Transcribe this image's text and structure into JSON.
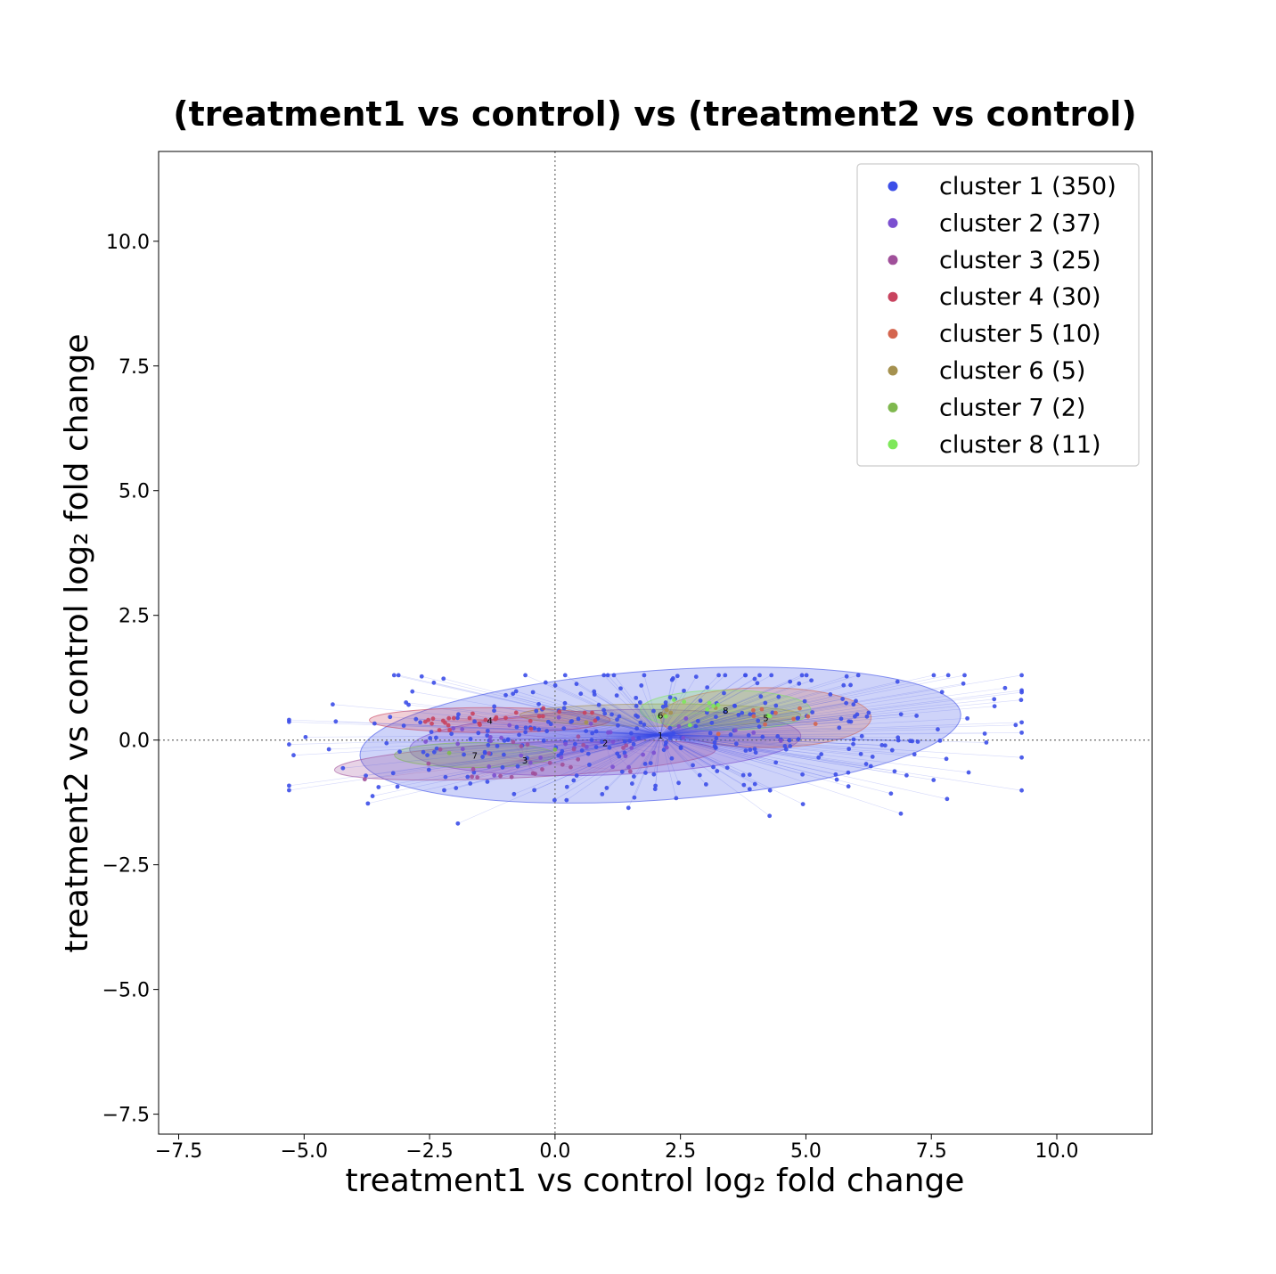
{
  "chart_data": {
    "type": "scatter",
    "title": "(treatment1 vs control) vs (treatment2 vs control)",
    "xlabel": "treatment1 vs control log₂ fold change",
    "ylabel": "treatment2 vs control log₂ fold change",
    "xlim": [
      -7.9,
      11.9
    ],
    "ylim": [
      -7.9,
      11.8
    ],
    "xticks": [
      -7.5,
      -5.0,
      -2.5,
      0.0,
      2.5,
      5.0,
      7.5,
      10.0
    ],
    "yticks": [
      -7.5,
      -5.0,
      -2.5,
      0.0,
      2.5,
      5.0,
      7.5,
      10.0
    ],
    "xtick_labels": [
      "−7.5",
      "−5.0",
      "−2.5",
      "0.0",
      "2.5",
      "5.0",
      "7.5",
      "10.0"
    ],
    "ytick_labels": [
      "−7.5",
      "−5.0",
      "−2.5",
      "0.0",
      "2.5",
      "5.0",
      "7.5",
      "10.0"
    ],
    "reference_lines": {
      "x": 0,
      "y": 0,
      "style": "dotted"
    },
    "legend_position": "top-right",
    "series": [
      {
        "name": "cluster 1 (350)",
        "label": "1",
        "color": "#3c4ee8",
        "count": 350,
        "centroid": [
          2.1,
          0.1
        ],
        "ellipse": {
          "width": 12.0,
          "height": 2.6,
          "angle_deg": 4
        },
        "x_range": [
          -5.3,
          9.3
        ],
        "y_range": [
          -2.2,
          1.3
        ]
      },
      {
        "name": "cluster 2 (37)",
        "label": "2",
        "color": "#7b4fd0",
        "count": 37,
        "centroid": [
          1.0,
          -0.05
        ],
        "ellipse": {
          "width": 7.8,
          "height": 1.3,
          "angle_deg": 2
        },
        "x_range": [
          -2.8,
          4.5
        ],
        "y_range": [
          -0.8,
          0.7
        ]
      },
      {
        "name": "cluster 3 (25)",
        "label": "3",
        "color": "#a0509a",
        "count": 25,
        "centroid": [
          -0.6,
          -0.4
        ],
        "ellipse": {
          "width": 7.6,
          "height": 0.7,
          "angle_deg": 3
        },
        "x_range": [
          -4.0,
          1.5
        ],
        "y_range": [
          -0.9,
          0.2
        ]
      },
      {
        "name": "cluster 4 (30)",
        "label": "4",
        "color": "#c8435f",
        "count": 30,
        "centroid": [
          -1.3,
          0.4
        ],
        "ellipse": {
          "width": 4.8,
          "height": 0.5,
          "angle_deg": 0
        },
        "x_range": [
          -3.2,
          0.8
        ],
        "y_range": [
          0.2,
          0.7
        ]
      },
      {
        "name": "cluster 5 (10)",
        "label": "5",
        "color": "#d4654e",
        "count": 10,
        "centroid": [
          4.2,
          0.45
        ],
        "ellipse": {
          "width": 4.2,
          "height": 1.2,
          "angle_deg": 0
        },
        "x_range": [
          2.5,
          5.8
        ],
        "y_range": [
          0.0,
          0.9
        ]
      },
      {
        "name": "cluster 6 (5)",
        "label": "6",
        "color": "#a5914f",
        "count": 5,
        "centroid": [
          2.1,
          0.5
        ],
        "ellipse": {
          "width": 5.6,
          "height": 0.45,
          "angle_deg": 0
        },
        "x_range": [
          0.5,
          5.0
        ],
        "y_range": [
          0.3,
          0.7
        ]
      },
      {
        "name": "cluster 7 (2)",
        "label": "7",
        "color": "#7fb84e",
        "count": 2,
        "centroid": [
          -1.6,
          -0.3
        ],
        "ellipse": {
          "width": 3.2,
          "height": 0.5,
          "angle_deg": 0
        },
        "x_range": [
          -3.3,
          0.0
        ],
        "y_range": [
          -0.5,
          -0.1
        ]
      },
      {
        "name": "cluster 8 (11)",
        "label": "8",
        "color": "#7ee85a",
        "count": 11,
        "centroid": [
          3.4,
          0.6
        ],
        "ellipse": {
          "width": 3.4,
          "height": 0.8,
          "angle_deg": 0
        },
        "x_range": [
          1.5,
          5.0
        ],
        "y_range": [
          0.2,
          1.0
        ]
      }
    ]
  }
}
